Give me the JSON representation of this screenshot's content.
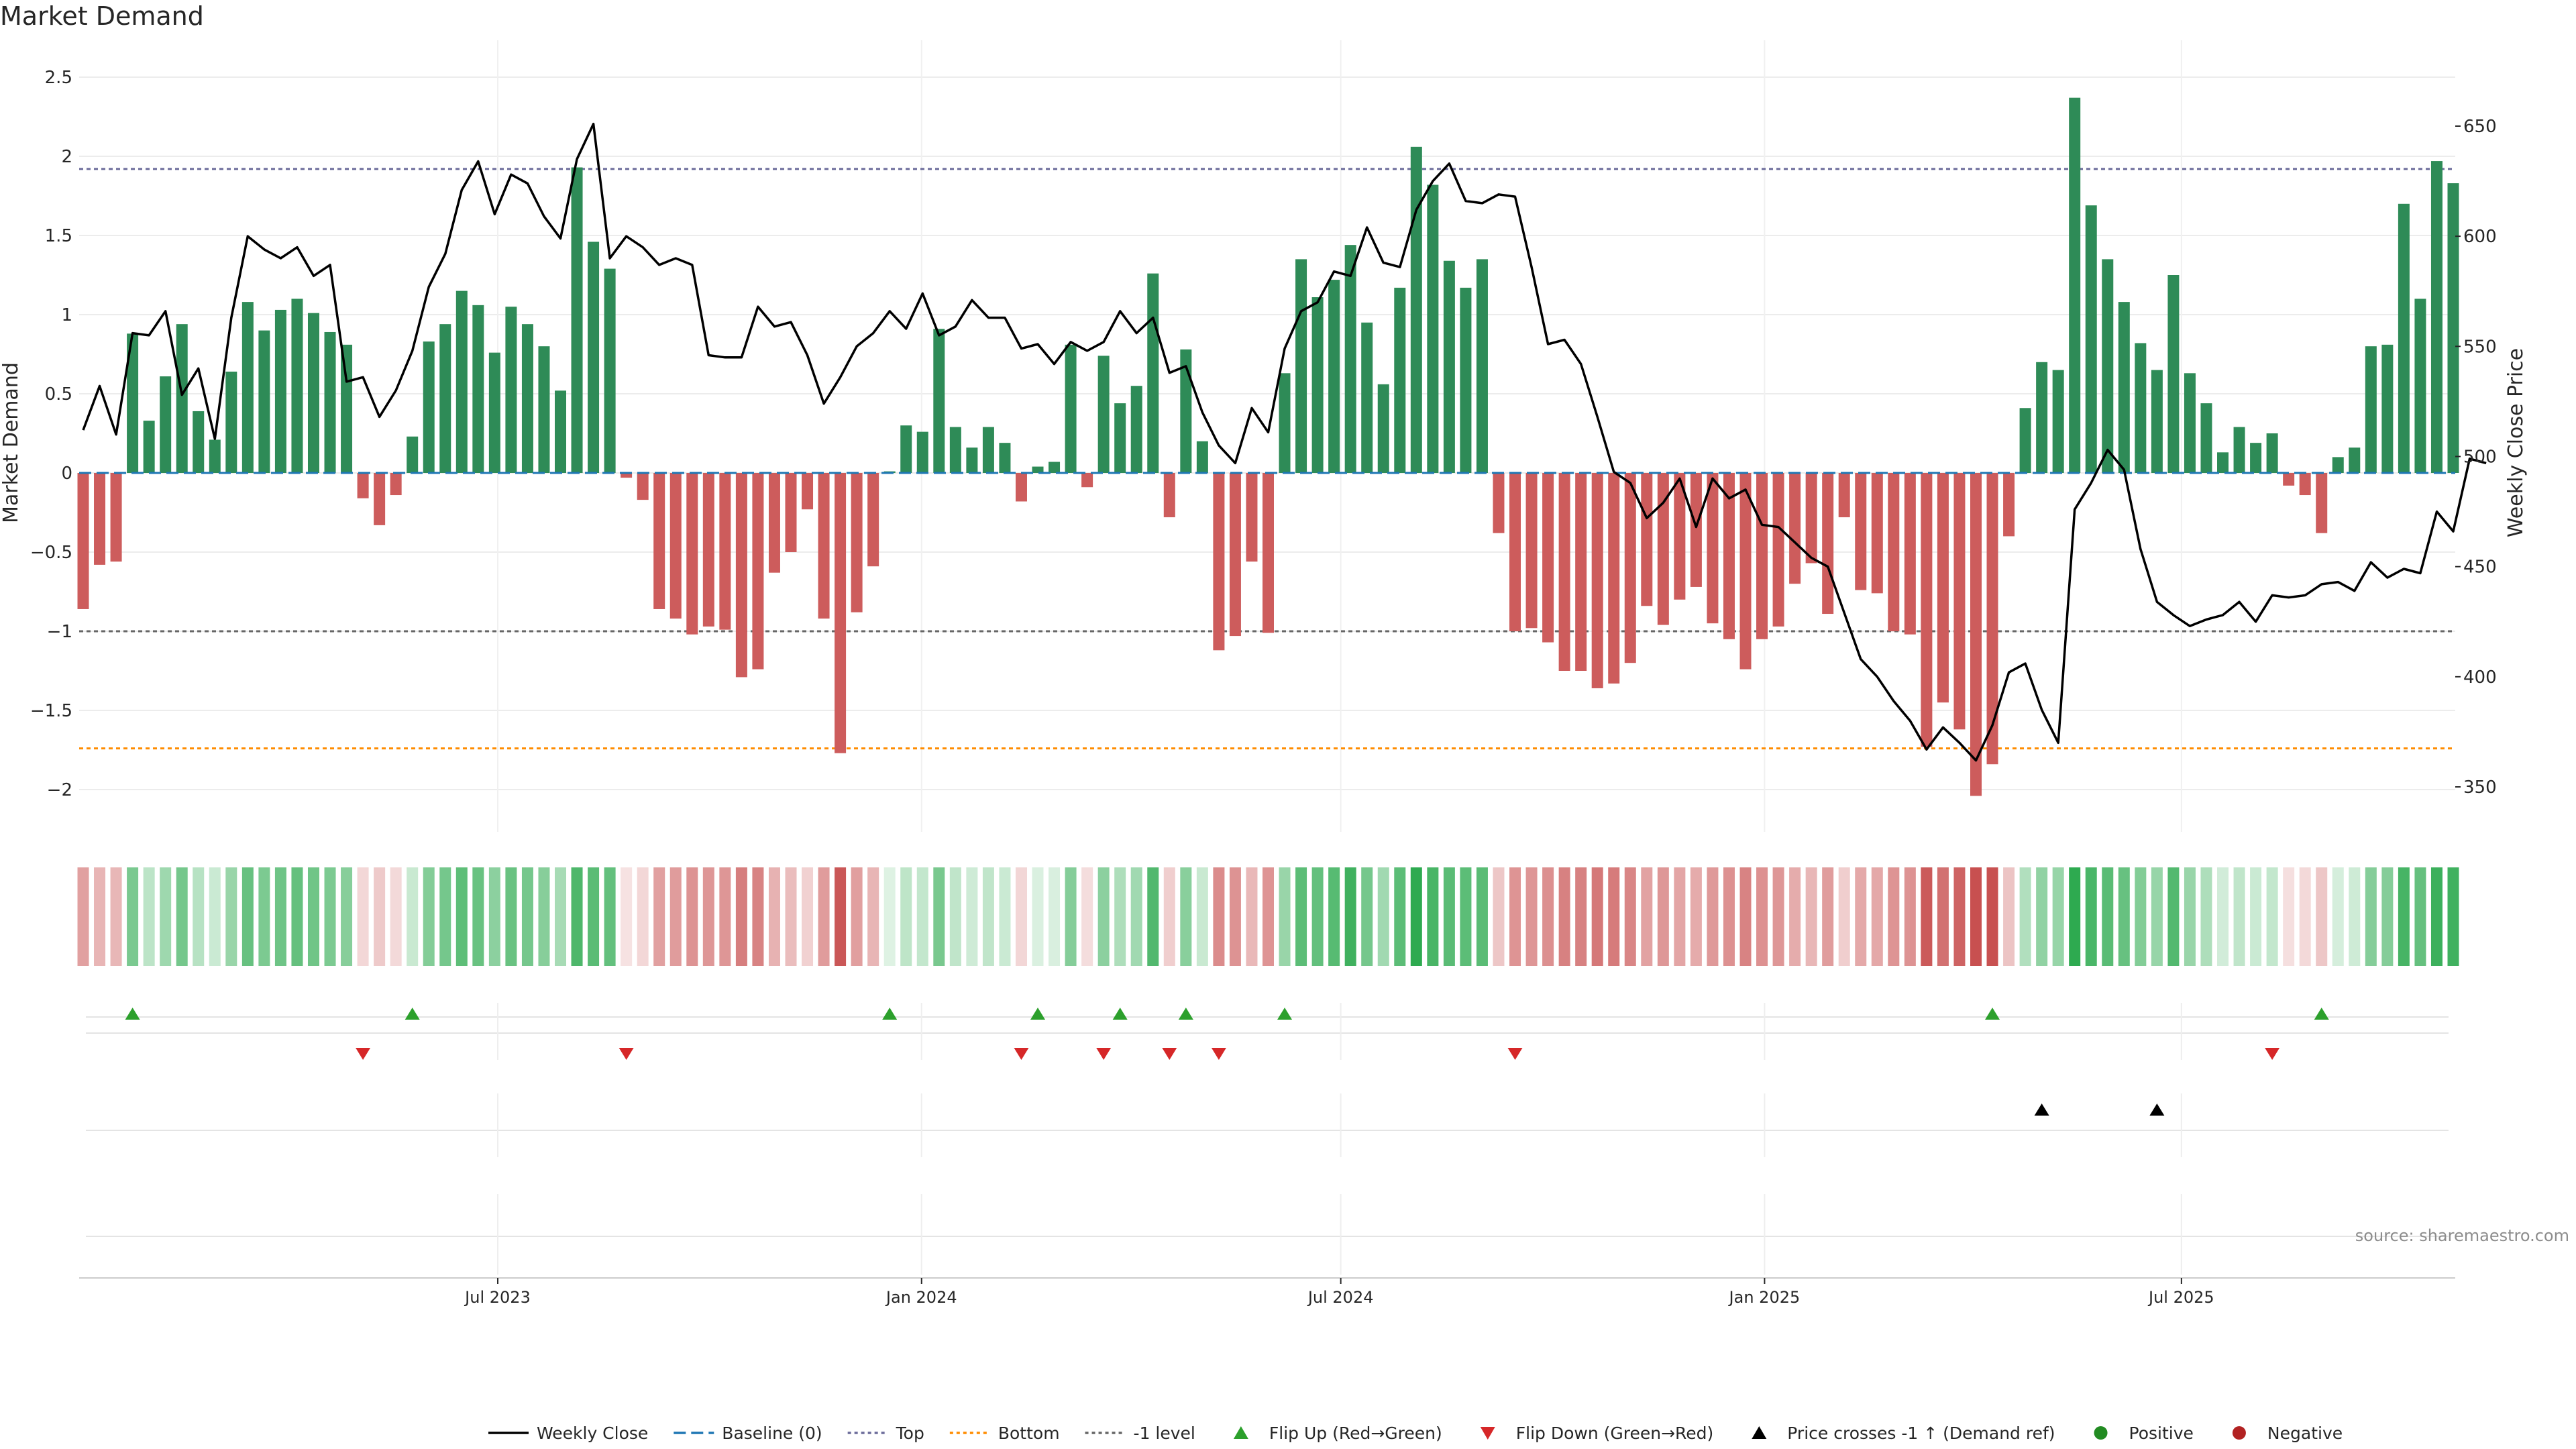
{
  "title": "Market Demand",
  "source": "source: sharemaestro.com",
  "colors": {
    "positive": "#2e8b57",
    "negative": "#cd5c5c",
    "price": "#000000",
    "baseline": "#1f77b4",
    "top": "#6b6b9a",
    "bottom": "#ff8c00",
    "minus1": "#666666",
    "flip_up": "#2ca02c",
    "flip_down": "#d62728",
    "cross": "#000000"
  },
  "chart_data": {
    "type": "bar",
    "title": "Market Demand",
    "ylabel_left": "Market Demand",
    "ylabel_right": "Weekly Close Price",
    "yticks_left": [
      "2.5",
      "2",
      "1.5",
      "1",
      "0.5",
      "0",
      "−0.5",
      "−1",
      "−1.5",
      "−2"
    ],
    "yticks_right": [
      "650",
      "600",
      "550",
      "500",
      "450",
      "400",
      "350"
    ],
    "ylim_left": [
      -2.3,
      2.5
    ],
    "ylim_right": [
      338.4,
      681.6
    ],
    "x_start": "2023-01-02",
    "x_end": "2025-10-27",
    "xticks": [
      {
        "date": "2023-07-01",
        "label": "Jul 2023"
      },
      {
        "date": "2024-01-01",
        "label": "Jan 2024"
      },
      {
        "date": "2024-07-01",
        "label": "Jul 2024"
      },
      {
        "date": "2025-01-01",
        "label": "Jan 2025"
      },
      {
        "date": "2025-07-01",
        "label": "Jul 2025"
      }
    ],
    "levels": {
      "top": 1.92,
      "bottom": -1.74,
      "minus_one": -1.0,
      "baseline": 0
    },
    "demand": [
      -0.86,
      -0.58,
      -0.56,
      0.88,
      0.33,
      0.61,
      0.94,
      0.39,
      0.21,
      0.64,
      1.08,
      0.9,
      1.03,
      1.1,
      1.01,
      0.89,
      0.81,
      -0.16,
      -0.33,
      -0.14,
      0.23,
      0.83,
      0.94,
      1.15,
      1.06,
      0.76,
      1.05,
      0.94,
      0.8,
      0.52,
      1.93,
      1.46,
      1.29,
      -0.03,
      -0.17,
      -0.86,
      -0.92,
      -1.02,
      -0.97,
      -0.99,
      -1.29,
      -1.24,
      -0.63,
      -0.5,
      -0.23,
      -0.92,
      -1.77,
      -0.88,
      -0.59,
      0.01,
      0.3,
      0.26,
      0.91,
      0.29,
      0.16,
      0.29,
      0.19,
      -0.18,
      0.04,
      0.07,
      0.81,
      -0.09,
      0.74,
      0.44,
      0.55,
      1.26,
      -0.28,
      0.78,
      0.2,
      -1.12,
      -1.03,
      -0.56,
      -1.01,
      0.63,
      1.35,
      1.11,
      1.22,
      1.44,
      0.95,
      0.56,
      1.17,
      2.06,
      1.82,
      1.34,
      1.17,
      1.35,
      -0.38,
      -1.0,
      -0.98,
      -1.07,
      -1.25,
      -1.25,
      -1.36,
      -1.33,
      -1.2,
      -0.84,
      -0.96,
      -0.8,
      -0.72,
      -0.95,
      -1.05,
      -1.24,
      -1.05,
      -0.97,
      -0.7,
      -0.57,
      -0.89,
      -0.28,
      -0.74,
      -0.76,
      -1.0,
      -1.02,
      -1.73,
      -1.45,
      -1.62,
      -2.04,
      -1.84,
      -0.4,
      0.41,
      0.7,
      0.65,
      2.37,
      1.69,
      1.35,
      1.08,
      0.82,
      0.65,
      1.25,
      0.63,
      0.44,
      0.13,
      0.29,
      0.19,
      0.25,
      -0.08,
      -0.14,
      -0.38,
      0.1,
      0.16,
      0.8,
      0.81,
      1.7,
      1.1,
      1.97,
      1.83
    ],
    "weekly_close": [
      512,
      532,
      510,
      556,
      555,
      566,
      528,
      540,
      508,
      563,
      600,
      594,
      590,
      595,
      582,
      587,
      534,
      536,
      518,
      530,
      548,
      577,
      592,
      621,
      634,
      610,
      628,
      624,
      609,
      599,
      635,
      651,
      590,
      600,
      595,
      587,
      590,
      587,
      546,
      545,
      545,
      568,
      559,
      561,
      546,
      524,
      536,
      550,
      556,
      566,
      558,
      574,
      555,
      559,
      571,
      563,
      563,
      549,
      551,
      542,
      552,
      548,
      552,
      566,
      556,
      563,
      538,
      541,
      520,
      505,
      497,
      522,
      511,
      549,
      566,
      570,
      584,
      582,
      604,
      588,
      586,
      612,
      625,
      633,
      616,
      615,
      619,
      618,
      586,
      551,
      553,
      542,
      518,
      493,
      488,
      472,
      479,
      490,
      468,
      490,
      481,
      485,
      469,
      468,
      461,
      454,
      450,
      429,
      408,
      400,
      389,
      380,
      367,
      377,
      370,
      362,
      378,
      402,
      406,
      385,
      370,
      476,
      488,
      503,
      494,
      458,
      434,
      428,
      423,
      426,
      428,
      434,
      425,
      437,
      436,
      437,
      442,
      443,
      439,
      452,
      445,
      449,
      447,
      475,
      466,
      499,
      497
    ],
    "heat_intensity": [
      0.46,
      0.32,
      0.31,
      0.57,
      0.2,
      0.37,
      0.6,
      0.23,
      0.12,
      0.4,
      0.68,
      0.56,
      0.64,
      0.69,
      0.63,
      0.56,
      0.5,
      0.09,
      0.18,
      0.08,
      0.13,
      0.52,
      0.6,
      0.73,
      0.67,
      0.47,
      0.67,
      0.6,
      0.5,
      0.32,
      0.82,
      0.75,
      0.7,
      0.02,
      0.09,
      0.46,
      0.49,
      0.55,
      0.52,
      0.53,
      0.69,
      0.66,
      0.34,
      0.27,
      0.13,
      0.49,
      0.95,
      0.47,
      0.32,
      0.01,
      0.19,
      0.16,
      0.58,
      0.18,
      0.1,
      0.18,
      0.12,
      0.1,
      0.03,
      0.04,
      0.51,
      0.05,
      0.47,
      0.28,
      0.35,
      0.8,
      0.15,
      0.49,
      0.13,
      0.6,
      0.55,
      0.3,
      0.54,
      0.4,
      0.74,
      0.7,
      0.77,
      0.9,
      0.6,
      0.35,
      0.74,
      1.0,
      0.85,
      0.75,
      0.74,
      0.75,
      0.2,
      0.54,
      0.53,
      0.57,
      0.67,
      0.67,
      0.73,
      0.71,
      0.64,
      0.45,
      0.52,
      0.43,
      0.39,
      0.51,
      0.56,
      0.66,
      0.56,
      0.52,
      0.38,
      0.31,
      0.48,
      0.15,
      0.4,
      0.41,
      0.54,
      0.55,
      0.93,
      0.78,
      0.87,
      1.0,
      0.99,
      0.22,
      0.26,
      0.44,
      0.41,
      1.0,
      0.84,
      0.75,
      0.68,
      0.52,
      0.41,
      0.79,
      0.4,
      0.28,
      0.08,
      0.18,
      0.12,
      0.16,
      0.04,
      0.08,
      0.2,
      0.06,
      0.1,
      0.51,
      0.51,
      0.86,
      0.69,
      0.92,
      0.9
    ],
    "flip_up_weeks": [
      3,
      20,
      49,
      58,
      63,
      67,
      73,
      116,
      136
    ],
    "flip_down_weeks": [
      17,
      33,
      57,
      62,
      66,
      69,
      87,
      133
    ],
    "price_cross_weeks": [
      119,
      126
    ],
    "legend": [
      {
        "label": "Weekly Close",
        "kind": "line",
        "color": "#000000",
        "dash": ""
      },
      {
        "label": "Baseline (0)",
        "kind": "line",
        "color": "#1f77b4",
        "dash": "18,8"
      },
      {
        "label": "Top",
        "kind": "line",
        "color": "#6b6b9a",
        "dash": "5,5"
      },
      {
        "label": "Bottom",
        "kind": "line",
        "color": "#ff8c00",
        "dash": "5,5"
      },
      {
        "label": "-1 level",
        "kind": "line",
        "color": "#666666",
        "dash": "5,5"
      },
      {
        "label": "Flip Up (Red→Green)",
        "kind": "tri-up",
        "color": "#2ca02c"
      },
      {
        "label": "Flip Down (Green→Red)",
        "kind": "tri-down",
        "color": "#d62728"
      },
      {
        "label": "Price crosses -1 ↑ (Demand ref)",
        "kind": "tri-up",
        "color": "#000000"
      },
      {
        "label": "Positive",
        "kind": "dot",
        "color": "#228b22"
      },
      {
        "label": "Negative",
        "kind": "dot",
        "color": "#b22222"
      }
    ]
  }
}
